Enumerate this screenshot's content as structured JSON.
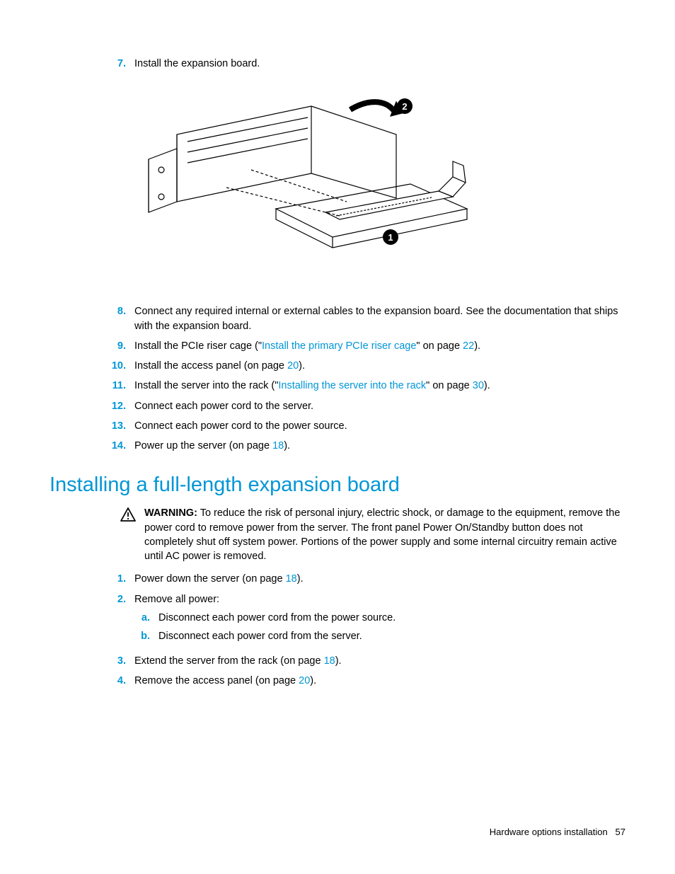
{
  "colors": {
    "accent": "#0096d6",
    "text": "#000000",
    "bg": "#ffffff"
  },
  "top_steps": [
    {
      "num": "7.",
      "text": "Install the expansion board."
    }
  ],
  "mid_steps": [
    {
      "num": "8.",
      "parts": [
        {
          "t": "Connect any required internal or external cables to the expansion board. See the documentation that ships with the expansion board."
        }
      ]
    },
    {
      "num": "9.",
      "parts": [
        {
          "t": "Install the PCIe riser cage (\""
        },
        {
          "t": "Install the primary PCIe riser cage",
          "link": true
        },
        {
          "t": "\" on page "
        },
        {
          "t": "22",
          "link": true
        },
        {
          "t": ")."
        }
      ]
    },
    {
      "num": "10.",
      "parts": [
        {
          "t": "Install the access panel (on page "
        },
        {
          "t": "20",
          "link": true
        },
        {
          "t": ")."
        }
      ]
    },
    {
      "num": "11.",
      "parts": [
        {
          "t": "Install the server into the rack (\""
        },
        {
          "t": "Installing the server into the rack",
          "link": true
        },
        {
          "t": "\" on page "
        },
        {
          "t": "30",
          "link": true
        },
        {
          "t": ")."
        }
      ]
    },
    {
      "num": "12.",
      "parts": [
        {
          "t": "Connect each power cord to the server."
        }
      ]
    },
    {
      "num": "13.",
      "parts": [
        {
          "t": "Connect each power cord to the power source."
        }
      ]
    },
    {
      "num": "14.",
      "parts": [
        {
          "t": "Power up the server (on page "
        },
        {
          "t": "18",
          "link": true
        },
        {
          "t": ")."
        }
      ]
    }
  ],
  "section_heading": "Installing a full-length expansion board",
  "warning": {
    "label": "WARNING:",
    "text": "  To reduce the risk of personal injury, electric shock, or damage to the equipment, remove the power cord to remove power from the server. The front panel Power On/Standby button does not completely shut off system power. Portions of the power supply and some internal circuitry remain active until AC power is removed."
  },
  "bottom_steps": [
    {
      "num": "1.",
      "parts": [
        {
          "t": "Power down the server (on page "
        },
        {
          "t": "18",
          "link": true
        },
        {
          "t": ")."
        }
      ]
    },
    {
      "num": "2.",
      "parts": [
        {
          "t": "Remove all power:"
        }
      ],
      "sub": [
        {
          "num": "a.",
          "text": "Disconnect each power cord from the power source."
        },
        {
          "num": "b.",
          "text": "Disconnect each power cord from the server."
        }
      ]
    },
    {
      "num": "3.",
      "parts": [
        {
          "t": "Extend the server from the rack (on page "
        },
        {
          "t": "18",
          "link": true
        },
        {
          "t": ")."
        }
      ]
    },
    {
      "num": "4.",
      "parts": [
        {
          "t": "Remove the access panel (on page "
        },
        {
          "t": "20",
          "link": true
        },
        {
          "t": ")."
        }
      ]
    }
  ],
  "footer": {
    "section": "Hardware options installation",
    "page": "57"
  },
  "figure": {
    "callouts": [
      "1",
      "2"
    ],
    "alt": "Isometric line drawing of a PCIe riser cage with an expansion card being inserted; callout 2 shows a curved arrow at the top bracket, callout 1 indicates the expansion card below."
  }
}
